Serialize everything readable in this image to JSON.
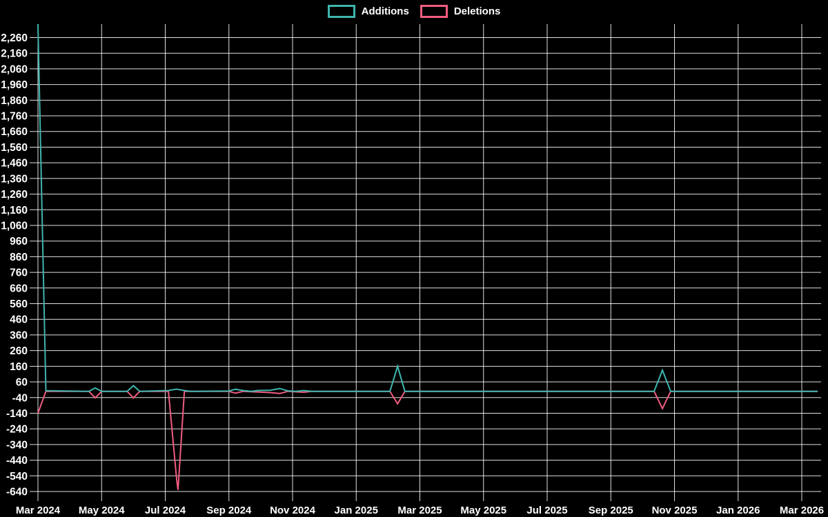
{
  "background": "#000000",
  "legend": {
    "items": [
      {
        "label": "Additions",
        "color": "#3fb6ae"
      },
      {
        "label": "Deletions",
        "color": "#f25d80"
      }
    ]
  },
  "chart_data": {
    "type": "line",
    "title": "",
    "xlabel": "",
    "ylabel": "",
    "x_unit": "months since Mar 2024",
    "xlim": [
      0,
      24.6
    ],
    "ylim": [
      -662,
      2346
    ],
    "grid": true,
    "legend_position": "top-center",
    "x_ticks": [
      {
        "label": "Mar 2024",
        "month": 0
      },
      {
        "label": "May 2024",
        "month": 2
      },
      {
        "label": "Jul 2024",
        "month": 4
      },
      {
        "label": "Sep 2024",
        "month": 6
      },
      {
        "label": "Nov 2024",
        "month": 8
      },
      {
        "label": "Jan 2025",
        "month": 10
      },
      {
        "label": "Mar 2025",
        "month": 12
      },
      {
        "label": "May 2025",
        "month": 14
      },
      {
        "label": "Jul 2025",
        "month": 16
      },
      {
        "label": "Sep 2025",
        "month": 18
      },
      {
        "label": "Nov 2025",
        "month": 20
      },
      {
        "label": "Jan 2026",
        "month": 22
      },
      {
        "label": "Mar 2026",
        "month": 24
      }
    ],
    "y_tick_labels": [
      "2,260",
      "2,160",
      "2,060",
      "1,960",
      "1,860",
      "1,760",
      "1,660",
      "1,560",
      "1,460",
      "1,360",
      "1,260",
      "1,160",
      "1,060",
      "960",
      "860",
      "760",
      "660",
      "560",
      "460",
      "360",
      "260",
      "160",
      "60",
      "-40",
      "-140",
      "-240",
      "-340",
      "-440",
      "-540",
      "-640"
    ],
    "y_tick_values": [
      2260,
      2160,
      2060,
      1960,
      1860,
      1760,
      1660,
      1560,
      1460,
      1360,
      1260,
      1160,
      1060,
      960,
      860,
      760,
      660,
      560,
      460,
      360,
      260,
      160,
      60,
      -40,
      -140,
      -240,
      -340,
      -440,
      -540,
      -640
    ],
    "series": [
      {
        "name": "Deletions",
        "color": "#f25d80",
        "points": [
          [
            0,
            -140
          ],
          [
            0.25,
            0
          ],
          [
            1.6,
            0
          ],
          [
            1.8,
            -42
          ],
          [
            2.0,
            0
          ],
          [
            2.8,
            0
          ],
          [
            3.0,
            -42
          ],
          [
            3.2,
            0
          ],
          [
            4.1,
            0
          ],
          [
            4.36,
            -565
          ],
          [
            4.4,
            -630
          ],
          [
            4.6,
            0
          ],
          [
            6.0,
            0
          ],
          [
            6.2,
            -12
          ],
          [
            6.45,
            0
          ],
          [
            7.3,
            -8
          ],
          [
            7.6,
            -14
          ],
          [
            7.85,
            0
          ],
          [
            8.35,
            -6
          ],
          [
            8.6,
            0
          ],
          [
            11.06,
            0
          ],
          [
            11.3,
            -80
          ],
          [
            11.53,
            0
          ],
          [
            19.36,
            0
          ],
          [
            19.62,
            -110
          ],
          [
            19.88,
            0
          ],
          [
            24.5,
            0
          ]
        ]
      },
      {
        "name": "Additions",
        "color": "#3fb6ae",
        "points": [
          [
            0,
            2346
          ],
          [
            0.25,
            4
          ],
          [
            1.6,
            0
          ],
          [
            1.8,
            22
          ],
          [
            2.0,
            0
          ],
          [
            2.8,
            0
          ],
          [
            3.0,
            36
          ],
          [
            3.2,
            0
          ],
          [
            4.1,
            5
          ],
          [
            4.35,
            14
          ],
          [
            4.6,
            5
          ],
          [
            4.8,
            0
          ],
          [
            6.0,
            2
          ],
          [
            6.2,
            13
          ],
          [
            6.45,
            5
          ],
          [
            6.7,
            0
          ],
          [
            6.9,
            5
          ],
          [
            7.3,
            7
          ],
          [
            7.6,
            18
          ],
          [
            7.85,
            3
          ],
          [
            8.1,
            0
          ],
          [
            8.35,
            5
          ],
          [
            8.6,
            0
          ],
          [
            11.06,
            0
          ],
          [
            11.3,
            160
          ],
          [
            11.53,
            0
          ],
          [
            19.36,
            0
          ],
          [
            19.62,
            135
          ],
          [
            19.88,
            0
          ],
          [
            24.5,
            0
          ]
        ]
      }
    ],
    "annotations": [
      "Additions spike at Mar 2024 is clipped at the top of the plot (~2,346)",
      "Deletions dip to ~-630 in mid-Jul 2024"
    ]
  }
}
